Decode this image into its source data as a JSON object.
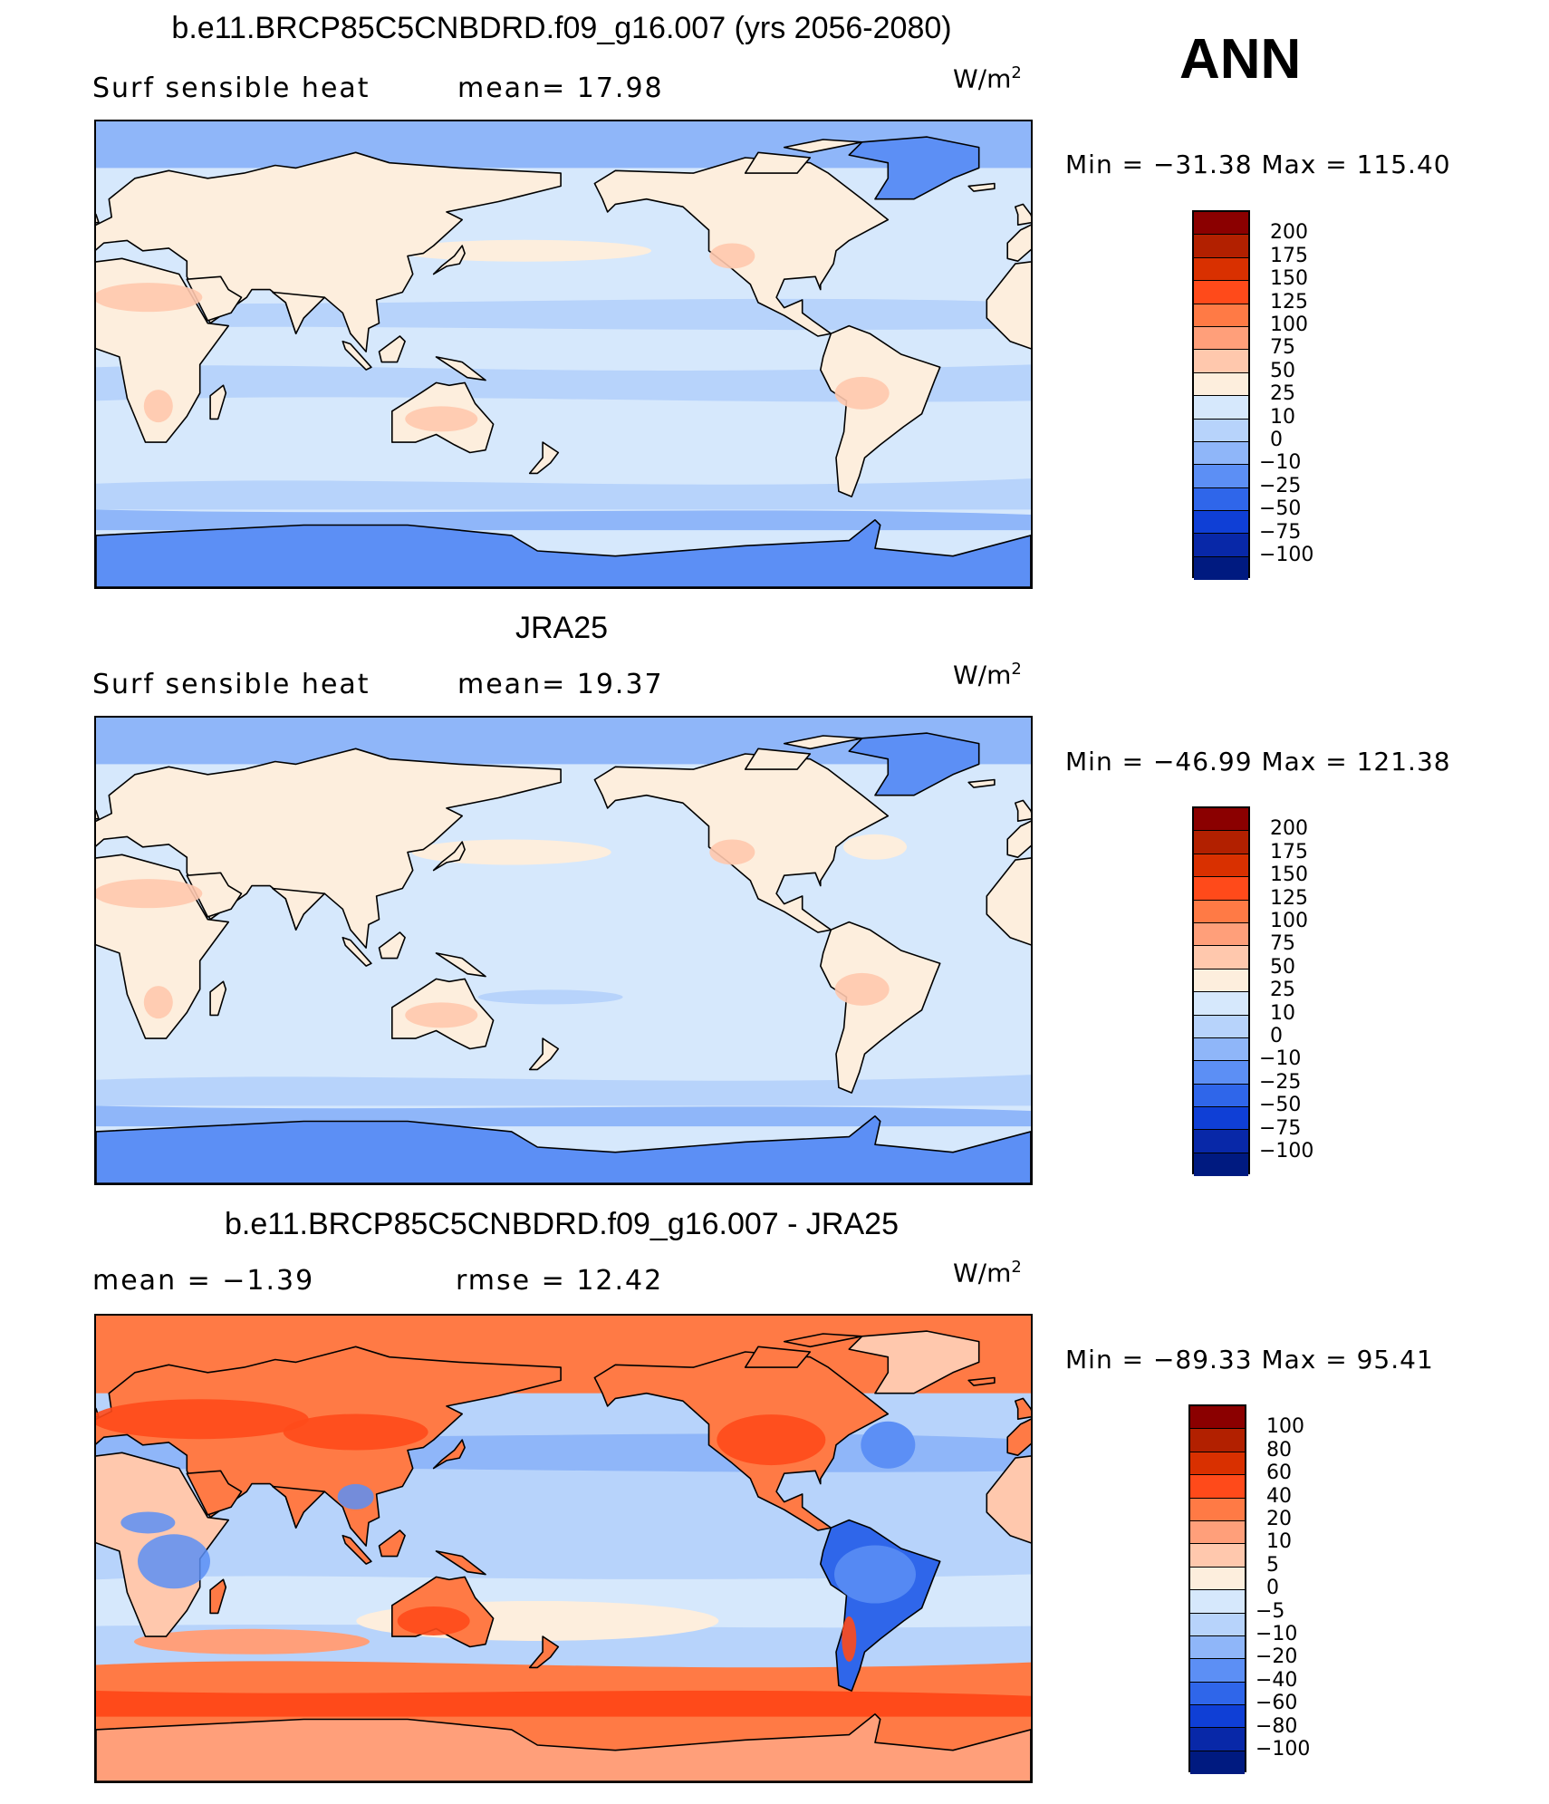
{
  "season": "ANN",
  "panels": [
    {
      "title": "b.e11.BRCP85C5CNBDRD.f09_g16.007 (yrs 2056-2080)",
      "left_label": "Surf  sensible  heat",
      "stat_label": "mean=   17.98",
      "units": "W/m",
      "units_exp": "2",
      "minmax": "Min  =  −31.38  Max  =  115.40",
      "colorbar": {
        "levels": [
          "200",
          "175",
          "150",
          "125",
          "100",
          "75",
          "50",
          "25",
          "10",
          "0",
          "−10",
          "−25",
          "−50",
          "−75",
          "−100"
        ],
        "colors": [
          "#8b0000",
          "#b22000",
          "#d93000",
          "#ff4a1a",
          "#ff7a45",
          "#ff9f7a",
          "#ffc8ad",
          "#fdeedd",
          "#d6e8fc",
          "#b7d3fb",
          "#8fb6f9",
          "#5c8ff5",
          "#2f66ea",
          "#0f3fd6",
          "#0828a8",
          "#001a80"
        ]
      },
      "map_style": "model"
    },
    {
      "title": "JRA25",
      "left_label": "Surf  sensible  heat",
      "stat_label": "mean=   19.37",
      "units": "W/m",
      "units_exp": "2",
      "minmax": "Min  =  −46.99  Max  =  121.38",
      "colorbar": {
        "levels": [
          "200",
          "175",
          "150",
          "125",
          "100",
          "75",
          "50",
          "25",
          "10",
          "0",
          "−10",
          "−25",
          "−50",
          "−75",
          "−100"
        ],
        "colors": [
          "#8b0000",
          "#b22000",
          "#d93000",
          "#ff4a1a",
          "#ff7a45",
          "#ff9f7a",
          "#ffc8ad",
          "#fdeedd",
          "#d6e8fc",
          "#b7d3fb",
          "#8fb6f9",
          "#5c8ff5",
          "#2f66ea",
          "#0f3fd6",
          "#0828a8",
          "#001a80"
        ]
      },
      "map_style": "obs"
    },
    {
      "title": "b.e11.BRCP85C5CNBDRD.f09_g16.007 - JRA25",
      "left_label": "mean  =    −1.39",
      "stat_label": "rmse  =    12.42",
      "units": "W/m",
      "units_exp": "2",
      "minmax": "Min  =  −89.33  Max  =    95.41",
      "colorbar": {
        "levels": [
          "100",
          "80",
          "60",
          "40",
          "20",
          "10",
          "5",
          "0",
          "−5",
          "−10",
          "−20",
          "−40",
          "−60",
          "−80",
          "−100"
        ],
        "colors": [
          "#8b0000",
          "#b22000",
          "#d93000",
          "#ff4a1a",
          "#ff7a45",
          "#ff9f7a",
          "#ffc8ad",
          "#fdeedd",
          "#d6e8fc",
          "#b7d3fb",
          "#8fb6f9",
          "#5c8ff5",
          "#2f66ea",
          "#0f3fd6",
          "#0828a8",
          "#001a80"
        ]
      },
      "map_style": "diff"
    }
  ]
}
